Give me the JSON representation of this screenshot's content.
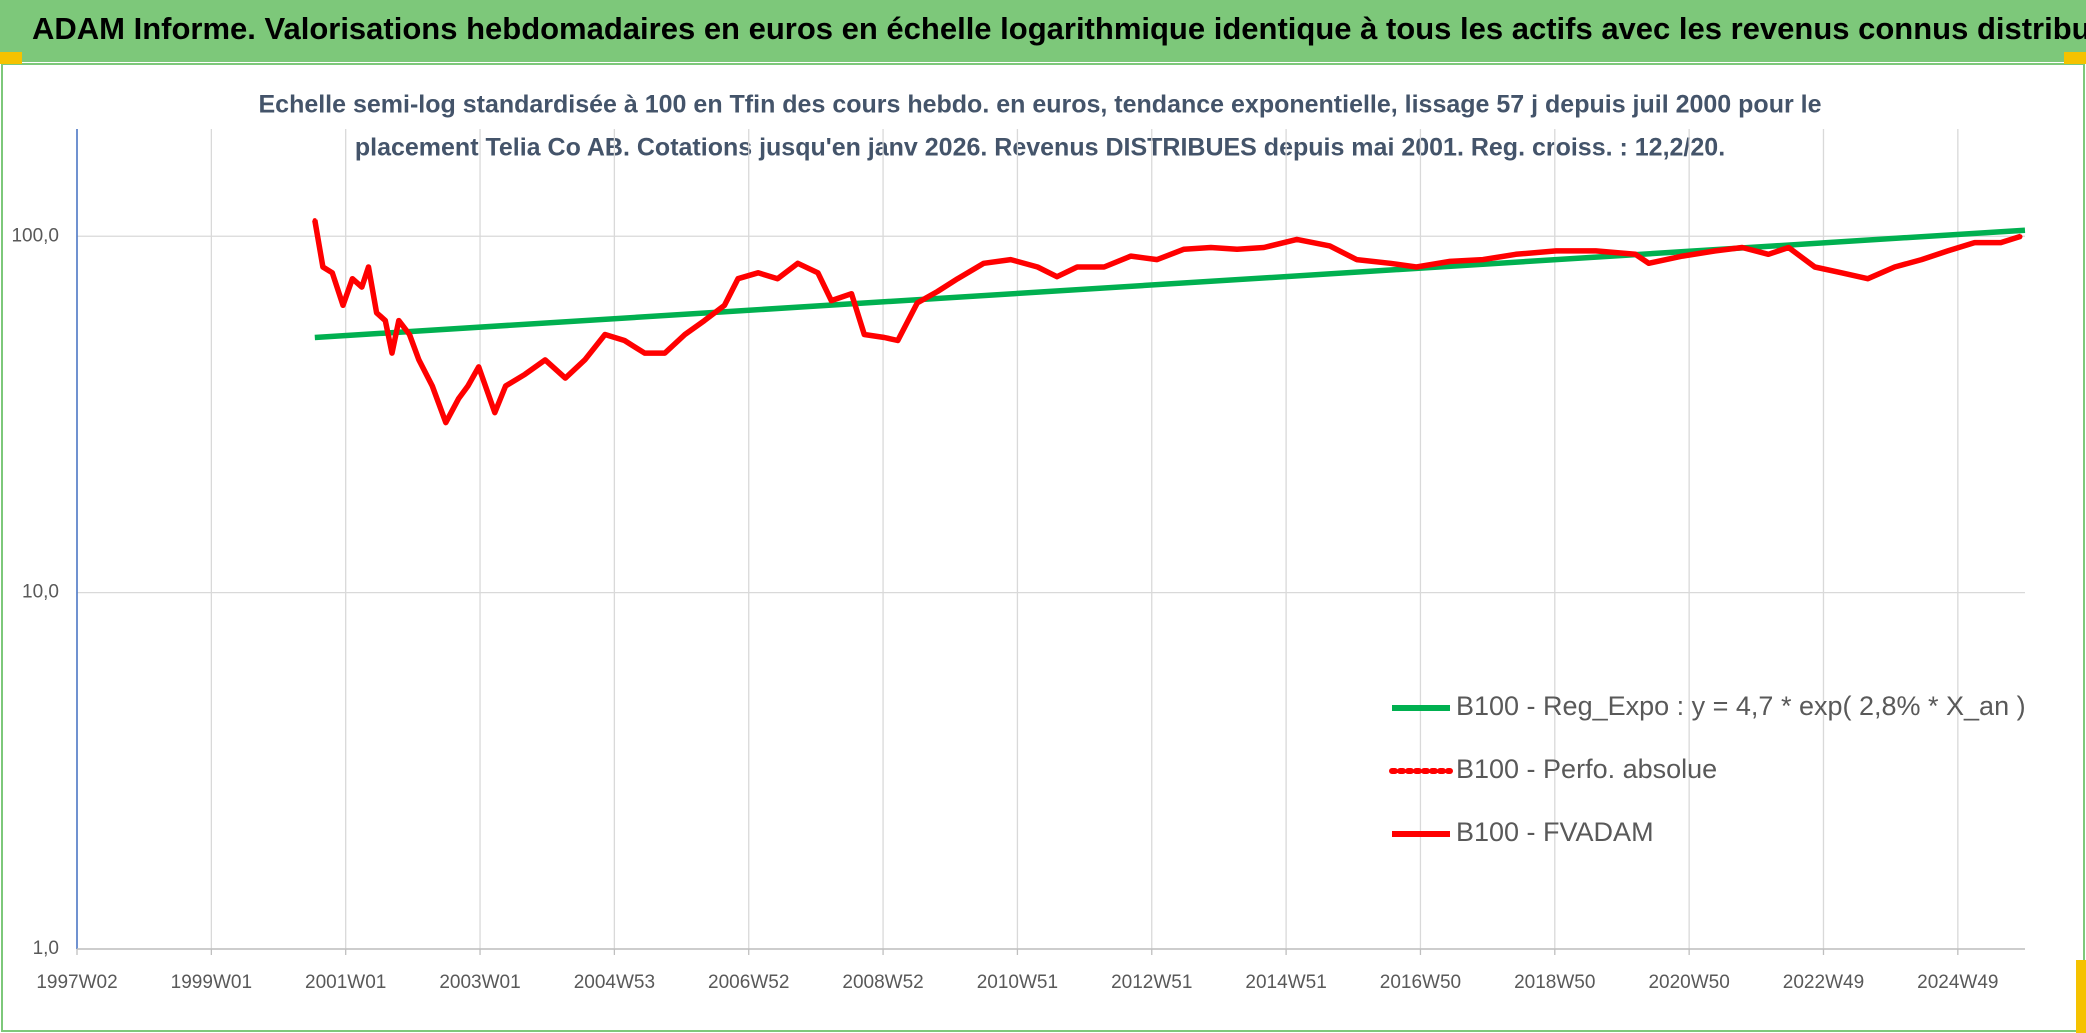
{
  "header": {
    "title": "ADAM Informe. Valorisations hebdomadaires en euros en échelle logarithmique identique à tous les actifs avec les revenus connus distribués"
  },
  "chart_data": {
    "type": "line",
    "subtitle": [
      "Echelle semi-log standardisée à 100 en Tfin des cours hebdo. en euros, tendance exponentielle, lissage 57 j depuis juil 2000 pour le",
      "placement Telia Co AB. Cotations jusqu'en janv 2026. Revenus DISTRIBUES depuis mai 2001. Reg. croiss. : 12,2/20."
    ],
    "log_y": true,
    "grid": true,
    "legend": "lower right",
    "xlim": [
      1997.0,
      2026.0
    ],
    "xticks": [
      {
        "value": 1997.0,
        "label": "1997W02"
      },
      {
        "value": 1999.0,
        "label": "1999W01"
      },
      {
        "value": 2001.0,
        "label": "2001W01"
      },
      {
        "value": 2003.0,
        "label": "2003W01"
      },
      {
        "value": 2005.0,
        "label": "2004W53"
      },
      {
        "value": 2007.0,
        "label": "2006W52"
      },
      {
        "value": 2009.0,
        "label": "2008W52"
      },
      {
        "value": 2011.0,
        "label": "2010W51"
      },
      {
        "value": 2013.0,
        "label": "2012W51"
      },
      {
        "value": 2015.0,
        "label": "2014W51"
      },
      {
        "value": 2017.0,
        "label": "2016W50"
      },
      {
        "value": 2019.0,
        "label": "2018W50"
      },
      {
        "value": 2021.0,
        "label": "2020W50"
      },
      {
        "value": 2023.0,
        "label": "2022W49"
      },
      {
        "value": 2025.0,
        "label": "2024W49"
      }
    ],
    "ylim": [
      1,
      200
    ],
    "yticks": [
      {
        "value": 1,
        "label": "1,0"
      },
      {
        "value": 10,
        "label": "10,0"
      },
      {
        "value": 100,
        "label": "100,0"
      }
    ],
    "series": [
      {
        "name": "B100 - Reg_Expo : y = 4,7 * exp( 2,8% *  X_an )",
        "color": "#00b050",
        "style": "solid",
        "x": [
          2000.54,
          2026.0
        ],
        "values": [
          52,
          104
        ]
      },
      {
        "name": "B100 - Perfo. absolue",
        "color": "#ff0000",
        "style": "dotted",
        "x": [
          2000.54,
          2000.66,
          2000.8,
          2000.96,
          2001.1,
          2001.24,
          2001.34,
          2001.46,
          2001.59,
          2001.69,
          2001.79,
          2001.95,
          2002.09,
          2002.29,
          2002.49,
          2002.68,
          2002.82,
          2002.98,
          2003.22,
          2003.38,
          2003.67,
          2003.97,
          2004.27,
          2004.56,
          2004.86,
          2005.15,
          2005.45,
          2005.75,
          2006.05,
          2006.34,
          2006.64,
          2006.84,
          2007.14,
          2007.43,
          2007.73,
          2008.03,
          2008.23,
          2008.53,
          2008.72,
          2009.02,
          2009.22,
          2009.51,
          2009.81,
          2010.11,
          2010.5,
          2010.9,
          2011.3,
          2011.59,
          2011.89,
          2012.29,
          2012.69,
          2013.08,
          2013.48,
          2013.88,
          2014.27,
          2014.67,
          2015.16,
          2015.65,
          2016.05,
          2016.55,
          2016.94,
          2017.44,
          2017.93,
          2018.42,
          2019.02,
          2019.61,
          2020.2,
          2020.4,
          2020.9,
          2021.39,
          2021.79,
          2022.18,
          2022.48,
          2022.87,
          2023.27,
          2023.66,
          2024.06,
          2024.46,
          2024.85,
          2025.25,
          2025.64,
          2025.94
        ],
        "values": [
          111,
          82,
          79,
          64,
          76,
          72,
          82,
          61,
          58,
          47,
          58,
          53,
          45,
          38,
          30,
          35,
          38,
          43,
          32,
          38,
          41,
          45,
          40,
          45,
          53,
          51,
          47,
          47,
          53,
          58,
          64,
          76,
          79,
          76,
          84,
          79,
          66,
          69,
          53,
          52,
          51,
          65,
          70,
          76,
          84,
          86,
          82,
          77,
          82,
          82,
          88,
          86,
          92,
          93,
          92,
          93,
          98,
          94,
          86,
          84,
          82,
          85,
          86,
          89,
          91,
          91,
          89,
          84,
          88,
          91,
          93,
          89,
          93,
          82,
          79,
          76,
          82,
          86,
          91,
          96,
          96,
          100
        ]
      },
      {
        "name": "B100 - FVADAM",
        "color": "#ff0000",
        "style": "solid",
        "x": [
          2000.54,
          2000.66,
          2000.8,
          2000.96,
          2001.1,
          2001.24,
          2001.34,
          2001.46,
          2001.59,
          2001.69,
          2001.79,
          2001.95,
          2002.09,
          2002.29,
          2002.49,
          2002.68,
          2002.82,
          2002.98,
          2003.22,
          2003.38,
          2003.67,
          2003.97,
          2004.27,
          2004.56,
          2004.86,
          2005.15,
          2005.45,
          2005.75,
          2006.05,
          2006.34,
          2006.64,
          2006.84,
          2007.14,
          2007.43,
          2007.73,
          2008.03,
          2008.23,
          2008.53,
          2008.72,
          2009.02,
          2009.22,
          2009.51,
          2009.81,
          2010.11,
          2010.5,
          2010.9,
          2011.3,
          2011.59,
          2011.89,
          2012.29,
          2012.69,
          2013.08,
          2013.48,
          2013.88,
          2014.27,
          2014.67,
          2015.16,
          2015.65,
          2016.05,
          2016.55,
          2016.94,
          2017.44,
          2017.93,
          2018.42,
          2019.02,
          2019.61,
          2020.2,
          2020.4,
          2020.9,
          2021.39,
          2021.79,
          2022.18,
          2022.48,
          2022.87,
          2023.27,
          2023.66,
          2024.06,
          2024.46,
          2024.85,
          2025.25,
          2025.64,
          2025.94
        ],
        "values": [
          111,
          82,
          79,
          64,
          76,
          72,
          82,
          61,
          58,
          47,
          58,
          53,
          45,
          38,
          30,
          35,
          38,
          43,
          32,
          38,
          41,
          45,
          40,
          45,
          53,
          51,
          47,
          47,
          53,
          58,
          64,
          76,
          79,
          76,
          84,
          79,
          66,
          69,
          53,
          52,
          51,
          65,
          70,
          76,
          84,
          86,
          82,
          77,
          82,
          82,
          88,
          86,
          92,
          93,
          92,
          93,
          98,
          94,
          86,
          84,
          82,
          85,
          86,
          89,
          91,
          91,
          89,
          84,
          88,
          91,
          93,
          89,
          93,
          82,
          79,
          76,
          82,
          86,
          91,
          96,
          96,
          100
        ]
      }
    ]
  }
}
